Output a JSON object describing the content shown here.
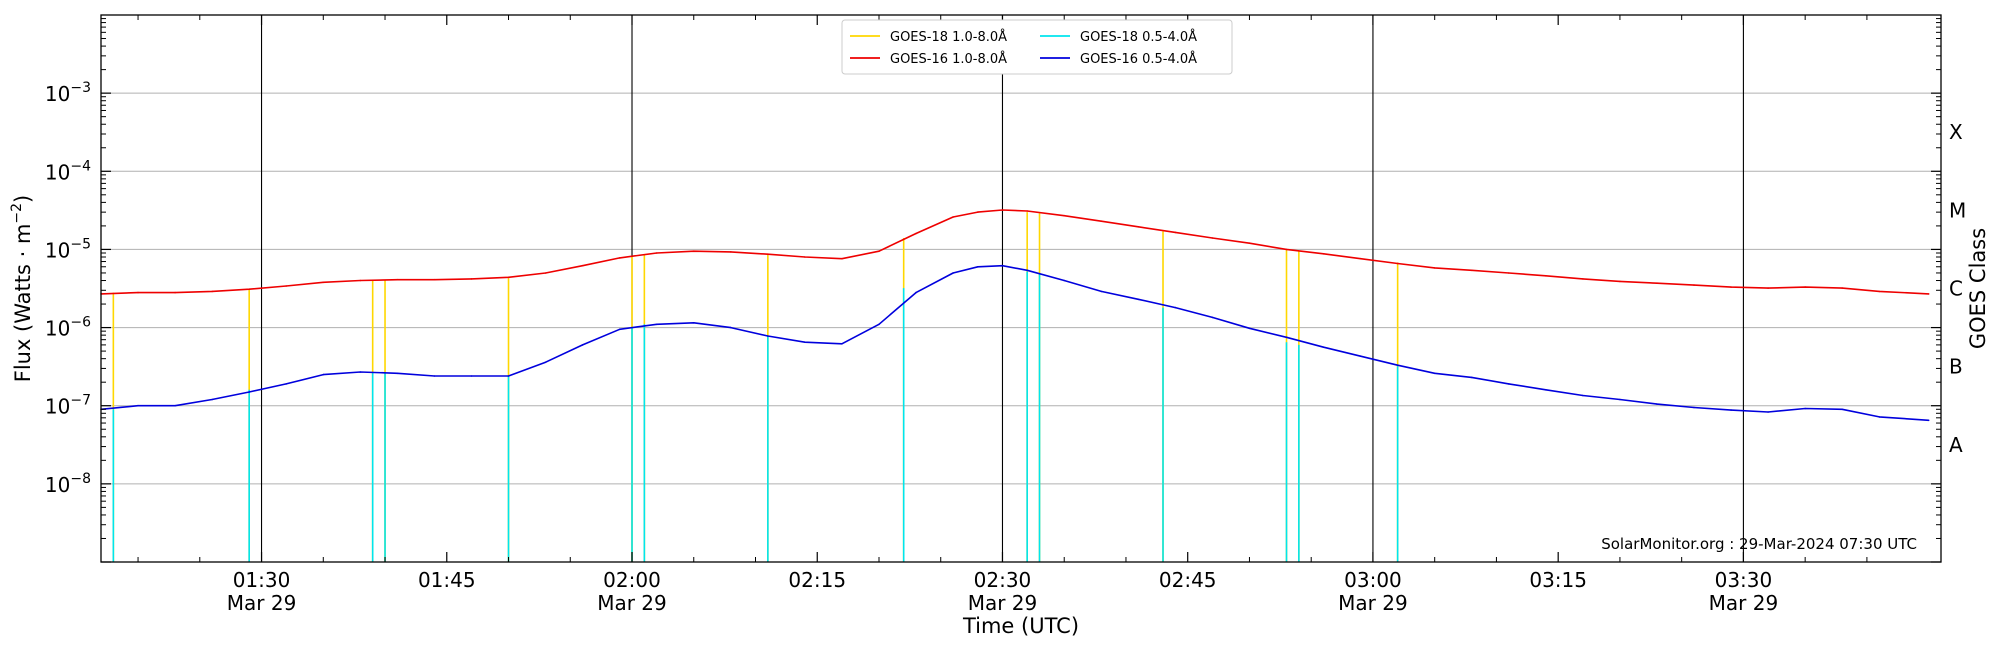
{
  "chart_data": {
    "type": "line",
    "xlabel": "Time (UTC)",
    "ylabel_base": "Flux (Watts · m",
    "ylabel_exp": "−2",
    "ylabel_close": ")",
    "y2label": "GOES Class",
    "credit": "SolarMonitor.org : 29-Mar-2024 07:30 UTC",
    "y_scale": "log",
    "xlim": [
      "01:17",
      "03:46"
    ],
    "ylim": [
      1e-09,
      0.01
    ],
    "grid": "horizontal at decades",
    "legend_placement": "top-center",
    "x_ticks": [
      {
        "t": "01:30",
        "label": "01:30",
        "sub": "Mar 29"
      },
      {
        "t": "01:45",
        "label": "01:45",
        "sub": ""
      },
      {
        "t": "02:00",
        "label": "02:00",
        "sub": "Mar 29"
      },
      {
        "t": "02:15",
        "label": "02:15",
        "sub": ""
      },
      {
        "t": "02:30",
        "label": "02:30",
        "sub": "Mar 29"
      },
      {
        "t": "02:45",
        "label": "02:45",
        "sub": ""
      },
      {
        "t": "03:00",
        "label": "03:00",
        "sub": "Mar 29"
      },
      {
        "t": "03:15",
        "label": "03:15",
        "sub": ""
      },
      {
        "t": "03:30",
        "label": "03:30",
        "sub": "Mar 29"
      }
    ],
    "vertical_markers": [
      "01:30",
      "02:00",
      "02:30",
      "03:00",
      "03:30"
    ],
    "y_ticks": [
      {
        "exp": -8,
        "label": "10",
        "sup": "−8"
      },
      {
        "exp": -7,
        "label": "10",
        "sup": "−7"
      },
      {
        "exp": -6,
        "label": "10",
        "sup": "−6"
      },
      {
        "exp": -5,
        "label": "10",
        "sup": "−5"
      },
      {
        "exp": -4,
        "label": "10",
        "sup": "−4"
      },
      {
        "exp": -3,
        "label": "10",
        "sup": "−3"
      }
    ],
    "goes_classes": [
      {
        "label": "A",
        "exp": -7.5
      },
      {
        "label": "B",
        "exp": -6.5
      },
      {
        "label": "C",
        "exp": -5.5
      },
      {
        "label": "M",
        "exp": -4.5
      },
      {
        "label": "X",
        "exp": -3.5
      }
    ],
    "series": [
      {
        "name": "GOES-18 1.0-8.0Å",
        "color": "#FFD700",
        "style": "spikes",
        "x": [
          "01:18",
          "01:29",
          "01:39",
          "01:40",
          "01:50",
          "02:00",
          "02:01",
          "02:11",
          "02:22",
          "02:32",
          "02:33",
          "02:43",
          "02:53",
          "02:54",
          "03:02"
        ],
        "top_values": [
          2.8e-06,
          3.1e-06,
          4e-06,
          4e-06,
          4.3e-06,
          8.2e-06,
          8.5e-06,
          8.6e-06,
          1.4e-05,
          3e-05,
          2.9e-05,
          1.7e-05,
          9.8e-06,
          9.4e-06,
          6.8e-06
        ]
      },
      {
        "name": "GOES-16 1.0-8.0Å",
        "color": "#EE0000",
        "style": "line",
        "x": [
          "01:17",
          "01:20",
          "01:23",
          "01:26",
          "01:29",
          "01:32",
          "01:35",
          "01:38",
          "01:41",
          "01:44",
          "01:47",
          "01:50",
          "01:53",
          "01:56",
          "01:59",
          "02:02",
          "02:05",
          "02:08",
          "02:11",
          "02:14",
          "02:17",
          "02:20",
          "02:23",
          "02:26",
          "02:28",
          "02:30",
          "02:32",
          "02:35",
          "02:38",
          "02:41",
          "02:44",
          "02:47",
          "02:50",
          "02:53",
          "02:56",
          "02:59",
          "03:02",
          "03:05",
          "03:08",
          "03:11",
          "03:14",
          "03:17",
          "03:20",
          "03:23",
          "03:26",
          "03:29",
          "03:32",
          "03:35",
          "03:38",
          "03:41",
          "03:45"
        ],
        "values": [
          2.7e-06,
          2.8e-06,
          2.8e-06,
          2.9e-06,
          3.1e-06,
          3.4e-06,
          3.8e-06,
          4e-06,
          4.1e-06,
          4.1e-06,
          4.2e-06,
          4.4e-06,
          5e-06,
          6.2e-06,
          7.8e-06,
          9e-06,
          9.5e-06,
          9.3e-06,
          8.7e-06,
          8e-06,
          7.6e-06,
          9.5e-06,
          1.6e-05,
          2.6e-05,
          3e-05,
          3.2e-05,
          3.1e-05,
          2.7e-05,
          2.3e-05,
          1.95e-05,
          1.65e-05,
          1.4e-05,
          1.2e-05,
          1e-05,
          8.8e-06,
          7.6e-06,
          6.6e-06,
          5.8e-06,
          5.4e-06,
          5e-06,
          4.6e-06,
          4.2e-06,
          3.9e-06,
          3.7e-06,
          3.5e-06,
          3.3e-06,
          3.2e-06,
          3.3e-06,
          3.2e-06,
          2.9e-06,
          2.7e-06
        ]
      },
      {
        "name": "GOES-18 0.5-4.0Å",
        "color": "#00E5EE",
        "style": "spikes",
        "x": [
          "01:18",
          "01:29",
          "01:39",
          "01:40",
          "01:50",
          "02:00",
          "02:01",
          "02:11",
          "02:22",
          "02:32",
          "02:33",
          "02:43",
          "02:53",
          "02:54",
          "03:02"
        ],
        "top_values": [
          9e-08,
          1.6e-07,
          2.7e-07,
          2.6e-07,
          2.4e-07,
          1e-06,
          1.1e-06,
          7.8e-07,
          3.2e-06,
          5.2e-06,
          4.8e-06,
          1.8e-06,
          6.5e-07,
          6e-07,
          3.2e-07
        ]
      },
      {
        "name": "GOES-16 0.5-4.0Å",
        "color": "#0000DD",
        "style": "line",
        "x": [
          "01:17",
          "01:20",
          "01:23",
          "01:26",
          "01:29",
          "01:32",
          "01:35",
          "01:38",
          "01:41",
          "01:44",
          "01:47",
          "01:50",
          "01:53",
          "01:56",
          "01:59",
          "02:02",
          "02:05",
          "02:08",
          "02:11",
          "02:14",
          "02:17",
          "02:20",
          "02:23",
          "02:26",
          "02:28",
          "02:30",
          "02:32",
          "02:35",
          "02:38",
          "02:41",
          "02:44",
          "02:47",
          "02:50",
          "02:53",
          "02:56",
          "02:59",
          "03:02",
          "03:05",
          "03:08",
          "03:11",
          "03:14",
          "03:17",
          "03:20",
          "03:23",
          "03:26",
          "03:29",
          "03:32",
          "03:35",
          "03:38",
          "03:41",
          "03:45"
        ],
        "values": [
          9e-08,
          1e-07,
          1e-07,
          1.2e-07,
          1.5e-07,
          1.9e-07,
          2.5e-07,
          2.7e-07,
          2.6e-07,
          2.4e-07,
          2.4e-07,
          2.4e-07,
          3.6e-07,
          6e-07,
          9.5e-07,
          1.1e-06,
          1.15e-06,
          1e-06,
          7.8e-07,
          6.5e-07,
          6.2e-07,
          1.1e-06,
          2.8e-06,
          5e-06,
          6e-06,
          6.2e-06,
          5.4e-06,
          4e-06,
          2.9e-06,
          2.3e-06,
          1.8e-06,
          1.35e-06,
          9.8e-07,
          7.5e-07,
          5.6e-07,
          4.3e-07,
          3.3e-07,
          2.6e-07,
          2.3e-07,
          1.9e-07,
          1.6e-07,
          1.35e-07,
          1.2e-07,
          1.05e-07,
          9.5e-08,
          8.8e-08,
          8.3e-08,
          9.2e-08,
          9e-08,
          7.2e-08,
          6.5e-08
        ]
      }
    ],
    "legend_columns": [
      [
        0,
        1
      ],
      [
        2,
        3
      ]
    ]
  }
}
